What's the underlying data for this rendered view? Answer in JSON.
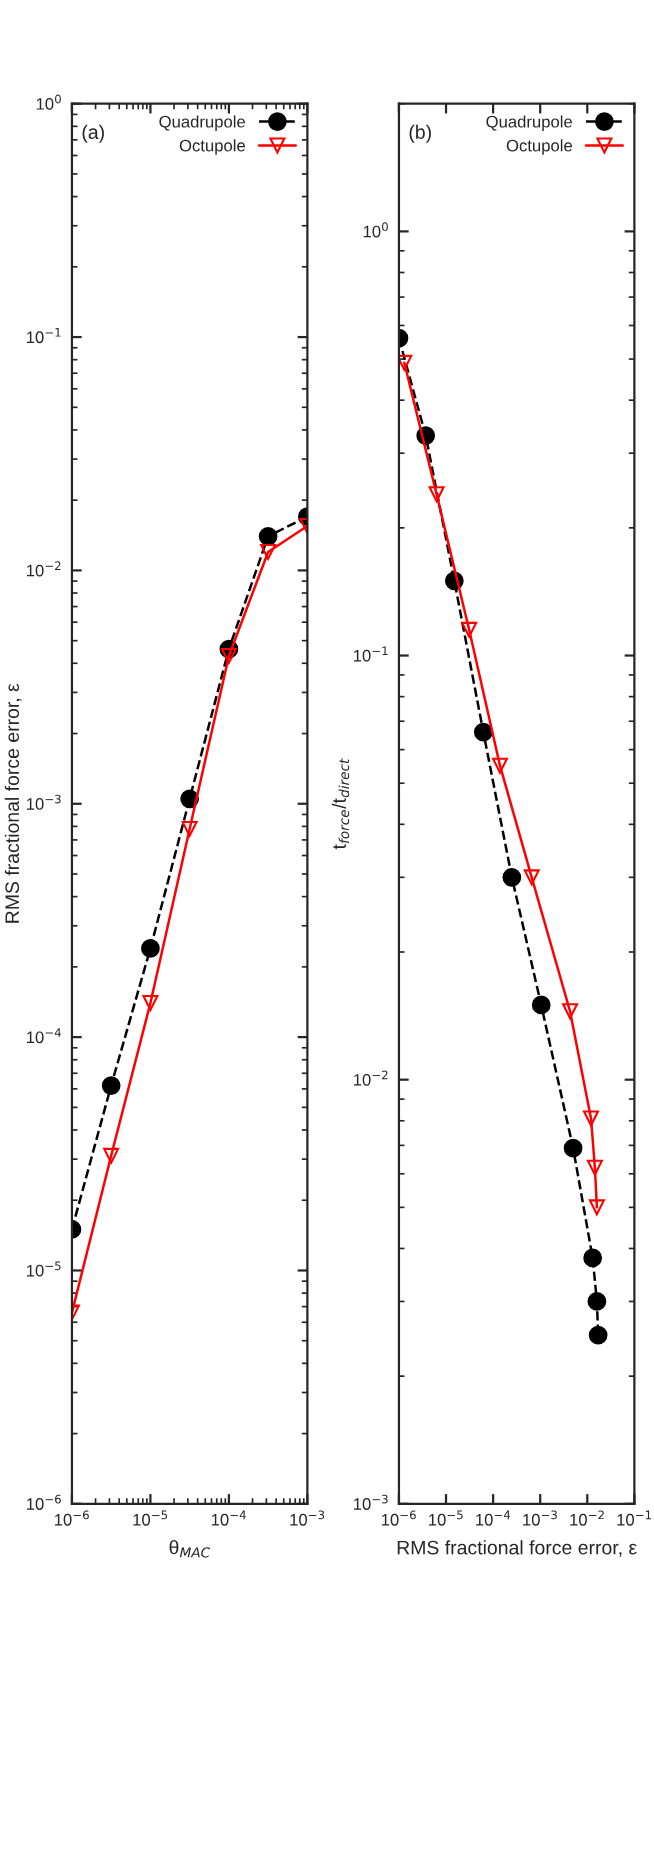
{
  "chart_data": [
    {
      "type": "line",
      "xlabel": "θ$_{MAC}$",
      "ylabel": "RMS fractional force error, ε",
      "annotations": [
        "(a)"
      ],
      "log": "xy",
      "legend": "top right",
      "grid": false,
      "xlim": [
        1e-06,
        0.001
      ],
      "xticks": [
        {
          "value": 1e-06,
          "label": "10$^{−6}$"
        },
        {
          "value": 1e-05,
          "label": "10$^{−5}$"
        },
        {
          "value": 0.0001,
          "label": "10$^{−4}$"
        },
        {
          "value": 0.001,
          "label": "10$^{−3}$"
        }
      ],
      "ylim": [
        1e-06,
        1
      ],
      "yticks": [
        {
          "value": 1e-06,
          "label": "10$^{−6}$"
        },
        {
          "value": 1e-05,
          "label": "10$^{−5}$"
        },
        {
          "value": 0.0001,
          "label": "10$^{−4}$"
        },
        {
          "value": 0.001,
          "label": "10$^{−3}$"
        },
        {
          "value": 0.01,
          "label": "10$^{−2}$"
        },
        {
          "value": 0.1,
          "label": "10$^{−1}$"
        },
        {
          "value": 1,
          "label": "10$^{0}$"
        }
      ],
      "series": [
        {
          "name": "Quadrupole",
          "color": "#000000",
          "marker": "circle",
          "line_style": "dashed",
          "x": [
            1e-06,
            3.16e-06,
            1e-05,
            3.16e-05,
            0.0001,
            0.000316,
            0.001
          ],
          "values": [
            1.5e-05,
            6.2e-05,
            0.00024,
            0.00105,
            0.0046,
            0.014,
            0.017
          ]
        },
        {
          "name": "Octupole",
          "color": "#ff0000",
          "marker": "triangle",
          "line_style": "solid",
          "x": [
            1e-06,
            3.16e-06,
            1e-05,
            3.16e-05,
            0.0001,
            0.000316,
            0.001
          ],
          "values": [
            6.6e-06,
            3.1e-05,
            0.00014,
            0.00078,
            0.0043,
            0.012,
            0.0155
          ]
        }
      ]
    },
    {
      "type": "line",
      "xlabel": "RMS fractional force error, ε",
      "ylabel": "t$_{force}$/t$_{direct}$",
      "annotations": [
        "(b)"
      ],
      "log": "xy",
      "legend": "top right",
      "grid": false,
      "xlim": [
        1e-06,
        0.1
      ],
      "xticks": [
        {
          "value": 1e-06,
          "label": "10$^{−6}$"
        },
        {
          "value": 1e-05,
          "label": "10$^{−5}$"
        },
        {
          "value": 0.0001,
          "label": "10$^{−4}$"
        },
        {
          "value": 0.001,
          "label": "10$^{−3}$"
        },
        {
          "value": 0.01,
          "label": "10$^{−2}$"
        },
        {
          "value": 0.1,
          "label": "10$^{−1}$"
        }
      ],
      "ylim": [
        0.001,
        2
      ],
      "yticks": [
        {
          "value": 0.001,
          "label": "10$^{−3}$"
        },
        {
          "value": 0.01,
          "label": "10$^{−2}$"
        },
        {
          "value": 0.1,
          "label": "10$^{−1}$"
        },
        {
          "value": 1,
          "label": "10$^{0}$"
        }
      ],
      "series": [
        {
          "name": "Quadrupole",
          "color": "#000000",
          "marker": "circle",
          "line_style": "dashed",
          "x": [
            1e-06,
            3.7e-06,
            1.5e-05,
            6.2e-05,
            0.00025,
            0.00105,
            0.005,
            0.013,
            0.016,
            0.017
          ],
          "values": [
            0.56,
            0.33,
            0.15,
            0.066,
            0.03,
            0.015,
            0.0069,
            0.0038,
            0.003,
            0.0025
          ]
        },
        {
          "name": "Octupole",
          "color": "#ff0000",
          "marker": "triangle",
          "line_style": "solid",
          "x": [
            1.3e-06,
            6.3e-06,
            3.1e-05,
            0.00014,
            0.00066,
            0.0043,
            0.012,
            0.0145,
            0.016
          ],
          "values": [
            0.49,
            0.24,
            0.115,
            0.055,
            0.03,
            0.0145,
            0.0081,
            0.0062,
            0.005
          ]
        }
      ]
    }
  ]
}
